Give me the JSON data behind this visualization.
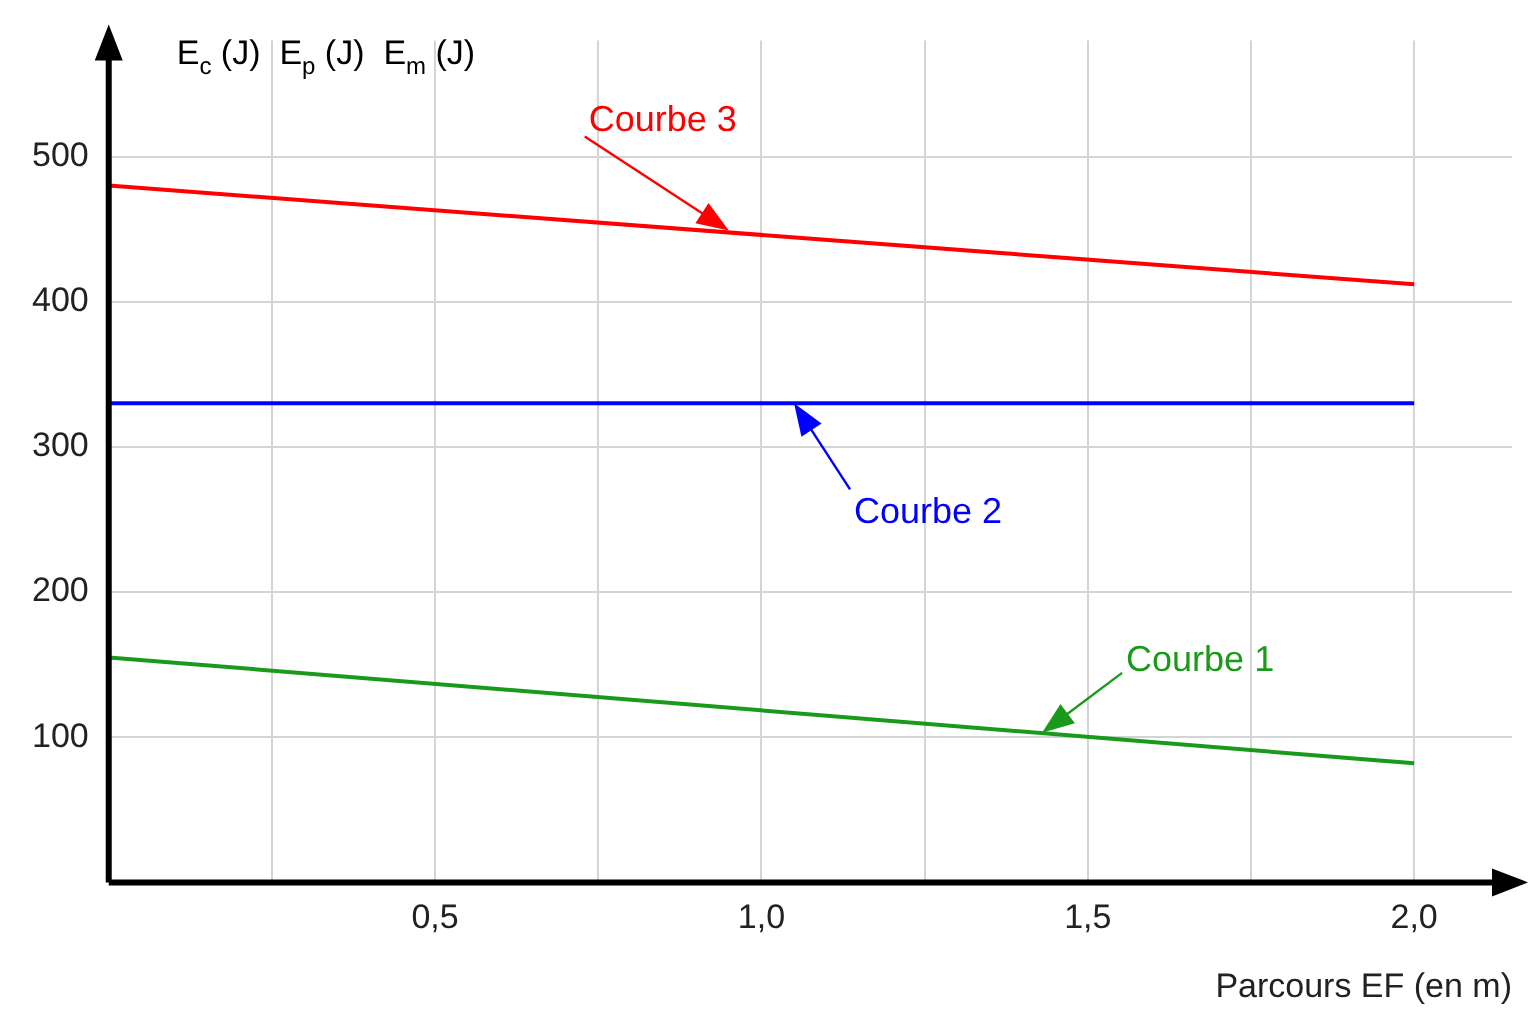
{
  "chart_data": {
    "type": "line",
    "xlabel": "Parcours EF (en m)",
    "ylabel": "E$_{c}$ (J)  E$_{p}$ (J)  E$_{m}$ (J)",
    "x": [
      0,
      2
    ],
    "series": [
      {
        "color": "#1a9a1a",
        "values": [
          155,
          82
        ]
      },
      {
        "color": "#0000ff",
        "values": [
          330,
          330
        ]
      },
      {
        "color": "#ff0000",
        "values": [
          480,
          412
        ]
      }
    ],
    "xlim": [
      0,
      2.15
    ],
    "ylim": [
      0,
      580
    ],
    "xticks": [
      {
        "value": 0.25,
        "label": null
      },
      {
        "value": 0.5,
        "label": "0,5"
      },
      {
        "value": 0.75,
        "label": null
      },
      {
        "value": 1,
        "label": "1,0"
      },
      {
        "value": 1.25,
        "label": null
      },
      {
        "value": 1.5,
        "label": "1,5"
      },
      {
        "value": 1.75,
        "label": null
      },
      {
        "value": 2,
        "label": "2,0"
      }
    ],
    "yticks": [
      100,
      200,
      300,
      400,
      500
    ],
    "grid": true,
    "legend": false,
    "marker": "none",
    "line_style": "solid",
    "annotations": [
      {
        "text": "Courbe 1",
        "x": 1.43,
        "y": 103
      },
      {
        "text": "Courbe 2",
        "x": 1.05,
        "y": 330
      },
      {
        "text": "Courbe 3",
        "x": 0.95,
        "y": 449
      }
    ]
  }
}
